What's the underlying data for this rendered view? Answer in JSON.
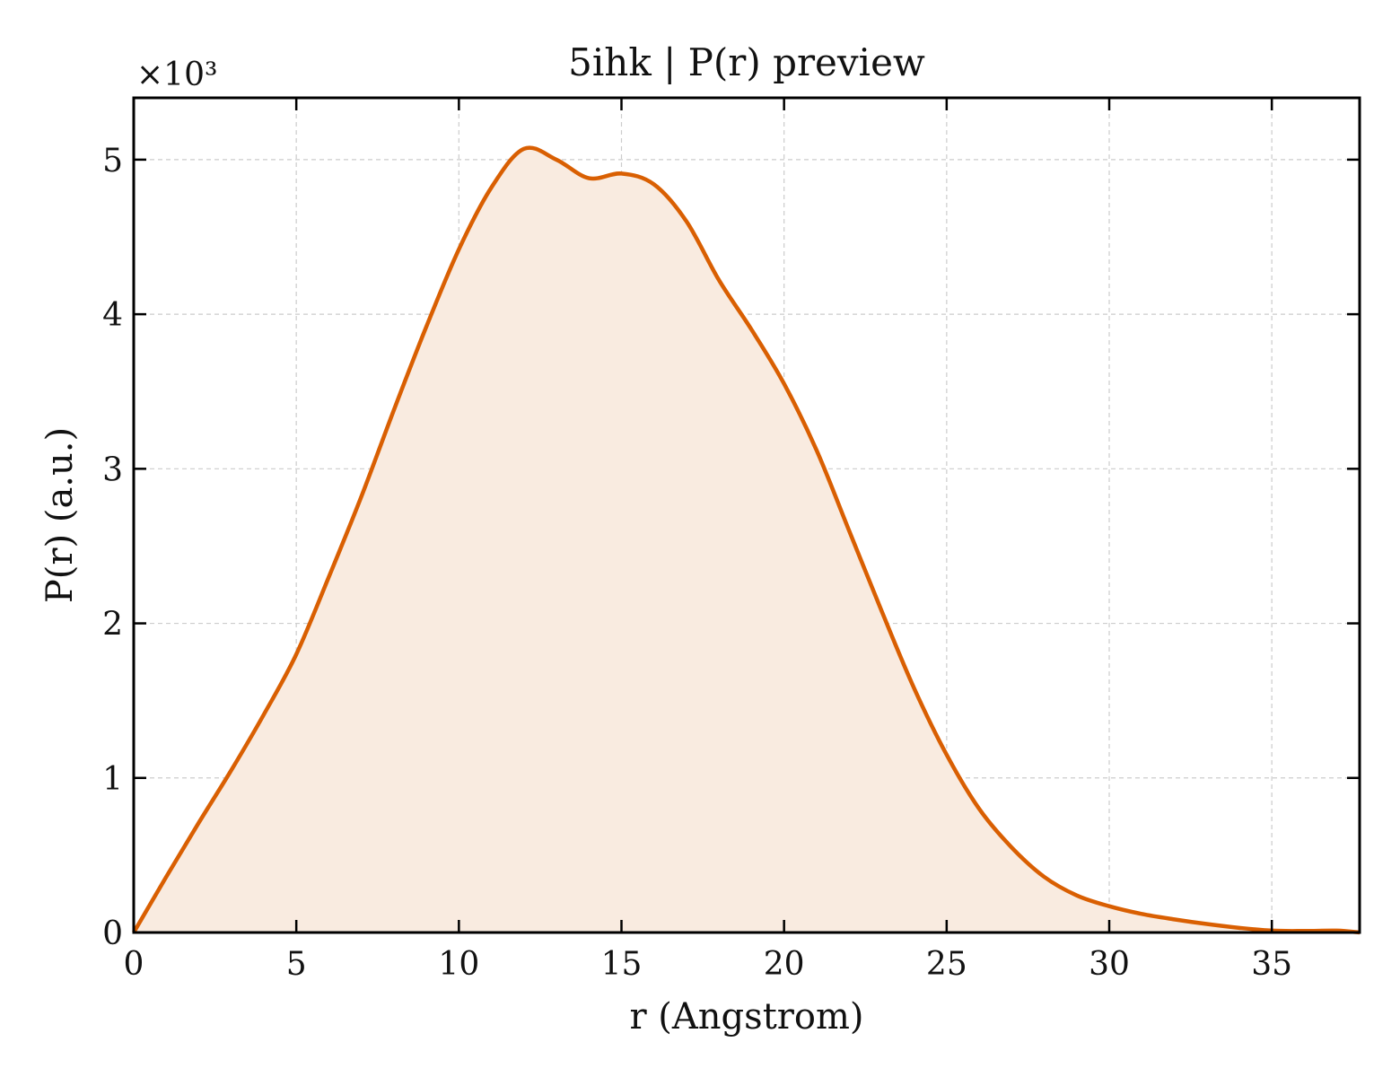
{
  "chart_data": {
    "type": "area",
    "title": "5ihk | P(r) preview",
    "xlabel": "r (Angstrom)",
    "ylabel": "P(r) (a.u.)",
    "y_multiplier": "×10³",
    "xlim": [
      0,
      37.7
    ],
    "ylim": [
      0,
      5.4
    ],
    "xticks": [
      0,
      5,
      10,
      15,
      20,
      25,
      30,
      35
    ],
    "yticks": [
      0,
      1,
      2,
      3,
      4,
      5
    ],
    "grid": true,
    "line_color": "#d95f02",
    "fill_color": "#f9ebe0",
    "series": [
      {
        "x": [
          0,
          1,
          2,
          3,
          4,
          5,
          6,
          7,
          8,
          9,
          10,
          11,
          12,
          13,
          14,
          15,
          16,
          17,
          18,
          19,
          20,
          21,
          22,
          23,
          24,
          25,
          26,
          27,
          28,
          29,
          30,
          31,
          32,
          33,
          34,
          35,
          36,
          37,
          37.7
        ],
        "y": [
          0,
          0.36,
          0.71,
          1.05,
          1.41,
          1.8,
          2.3,
          2.82,
          3.38,
          3.92,
          4.42,
          4.82,
          5.07,
          5.0,
          4.88,
          4.91,
          4.84,
          4.6,
          4.22,
          3.9,
          3.55,
          3.12,
          2.6,
          2.08,
          1.58,
          1.15,
          0.8,
          0.55,
          0.36,
          0.24,
          0.17,
          0.12,
          0.085,
          0.055,
          0.03,
          0.012,
          0.01,
          0.012,
          0.0
        ]
      }
    ]
  }
}
